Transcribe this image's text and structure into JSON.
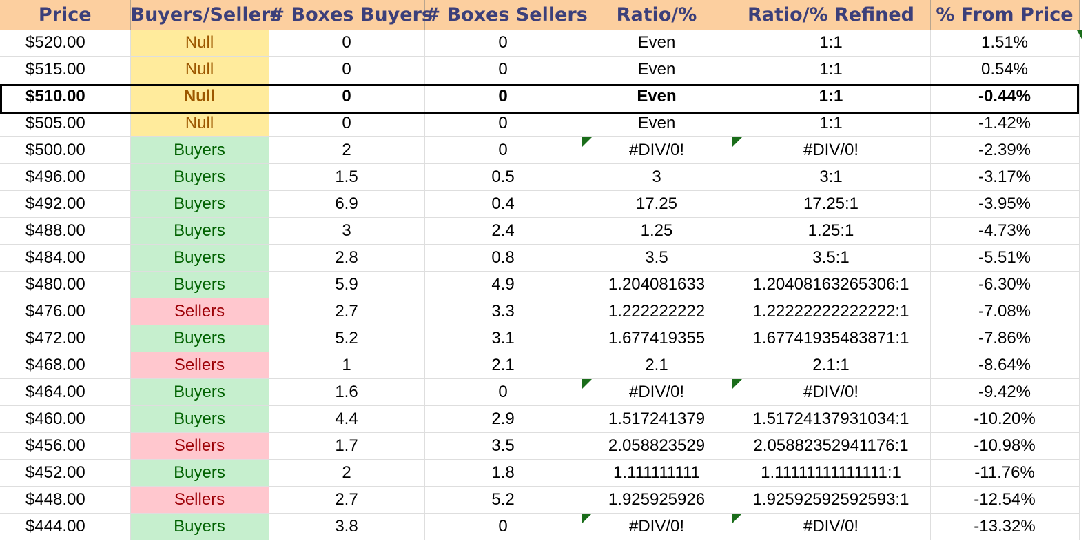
{
  "headers": [
    "Price",
    "Buyers/Sellers",
    "# Boxes Buyers",
    "# Boxes Sellers",
    "Ratio/%",
    "Ratio/% Refined",
    "% From Price"
  ],
  "highlight_row_index": 2,
  "colors": {
    "header_bg": "#fccf9f",
    "header_text": "#3b3f7a",
    "null_bg": "#ffeb9c",
    "null_text": "#9c5700",
    "buyers_bg": "#c6efce",
    "buyers_text": "#006100",
    "sellers_bg": "#ffc7ce",
    "sellers_text": "#9c0006",
    "error_marker": "#1a6d1a"
  },
  "rows": [
    {
      "price": "$520.00",
      "side": "Null",
      "boxes_buyers": "0",
      "boxes_sellers": "0",
      "ratio": "Even",
      "ratio_refined": "1:1",
      "from_price": "1.51%",
      "error": false
    },
    {
      "price": "$515.00",
      "side": "Null",
      "boxes_buyers": "0",
      "boxes_sellers": "0",
      "ratio": "Even",
      "ratio_refined": "1:1",
      "from_price": "0.54%",
      "error": false
    },
    {
      "price": "$510.00",
      "side": "Null",
      "boxes_buyers": "0",
      "boxes_sellers": "0",
      "ratio": "Even",
      "ratio_refined": "1:1",
      "from_price": "-0.44%",
      "error": false
    },
    {
      "price": "$505.00",
      "side": "Null",
      "boxes_buyers": "0",
      "boxes_sellers": "0",
      "ratio": "Even",
      "ratio_refined": "1:1",
      "from_price": "-1.42%",
      "error": false
    },
    {
      "price": "$500.00",
      "side": "Buyers",
      "boxes_buyers": "2",
      "boxes_sellers": "0",
      "ratio": "#DIV/0!",
      "ratio_refined": "#DIV/0!",
      "from_price": "-2.39%",
      "error": true
    },
    {
      "price": "$496.00",
      "side": "Buyers",
      "boxes_buyers": "1.5",
      "boxes_sellers": "0.5",
      "ratio": "3",
      "ratio_refined": "3:1",
      "from_price": "-3.17%",
      "error": false
    },
    {
      "price": "$492.00",
      "side": "Buyers",
      "boxes_buyers": "6.9",
      "boxes_sellers": "0.4",
      "ratio": "17.25",
      "ratio_refined": "17.25:1",
      "from_price": "-3.95%",
      "error": false
    },
    {
      "price": "$488.00",
      "side": "Buyers",
      "boxes_buyers": "3",
      "boxes_sellers": "2.4",
      "ratio": "1.25",
      "ratio_refined": "1.25:1",
      "from_price": "-4.73%",
      "error": false
    },
    {
      "price": "$484.00",
      "side": "Buyers",
      "boxes_buyers": "2.8",
      "boxes_sellers": "0.8",
      "ratio": "3.5",
      "ratio_refined": "3.5:1",
      "from_price": "-5.51%",
      "error": false
    },
    {
      "price": "$480.00",
      "side": "Buyers",
      "boxes_buyers": "5.9",
      "boxes_sellers": "4.9",
      "ratio": "1.204081633",
      "ratio_refined": "1.20408163265306:1",
      "from_price": "-6.30%",
      "error": false
    },
    {
      "price": "$476.00",
      "side": "Sellers",
      "boxes_buyers": "2.7",
      "boxes_sellers": "3.3",
      "ratio": "1.222222222",
      "ratio_refined": "1.22222222222222:1",
      "from_price": "-7.08%",
      "error": false
    },
    {
      "price": "$472.00",
      "side": "Buyers",
      "boxes_buyers": "5.2",
      "boxes_sellers": "3.1",
      "ratio": "1.677419355",
      "ratio_refined": "1.67741935483871:1",
      "from_price": "-7.86%",
      "error": false
    },
    {
      "price": "$468.00",
      "side": "Sellers",
      "boxes_buyers": "1",
      "boxes_sellers": "2.1",
      "ratio": "2.1",
      "ratio_refined": "2.1:1",
      "from_price": "-8.64%",
      "error": false
    },
    {
      "price": "$464.00",
      "side": "Buyers",
      "boxes_buyers": "1.6",
      "boxes_sellers": "0",
      "ratio": "#DIV/0!",
      "ratio_refined": "#DIV/0!",
      "from_price": "-9.42%",
      "error": true
    },
    {
      "price": "$460.00",
      "side": "Buyers",
      "boxes_buyers": "4.4",
      "boxes_sellers": "2.9",
      "ratio": "1.517241379",
      "ratio_refined": "1.51724137931034:1",
      "from_price": "-10.20%",
      "error": false
    },
    {
      "price": "$456.00",
      "side": "Sellers",
      "boxes_buyers": "1.7",
      "boxes_sellers": "3.5",
      "ratio": "2.058823529",
      "ratio_refined": "2.05882352941176:1",
      "from_price": "-10.98%",
      "error": false
    },
    {
      "price": "$452.00",
      "side": "Buyers",
      "boxes_buyers": "2",
      "boxes_sellers": "1.8",
      "ratio": "1.111111111",
      "ratio_refined": "1.11111111111111:1",
      "from_price": "-11.76%",
      "error": false
    },
    {
      "price": "$448.00",
      "side": "Sellers",
      "boxes_buyers": "2.7",
      "boxes_sellers": "5.2",
      "ratio": "1.925925926",
      "ratio_refined": "1.92592592592593:1",
      "from_price": "-12.54%",
      "error": false
    },
    {
      "price": "$444.00",
      "side": "Buyers",
      "boxes_buyers": "3.8",
      "boxes_sellers": "0",
      "ratio": "#DIV/0!",
      "ratio_refined": "#DIV/0!",
      "from_price": "-13.32%",
      "error": true
    }
  ]
}
